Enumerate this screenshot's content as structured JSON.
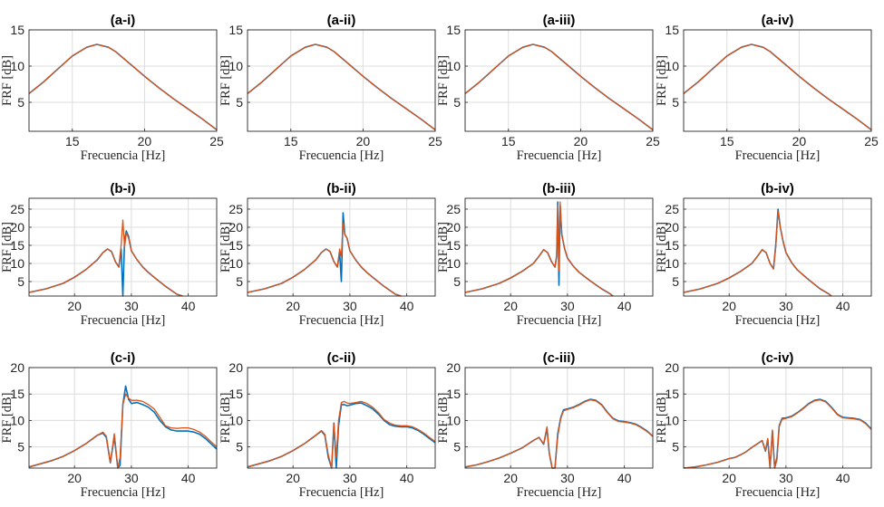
{
  "colors": {
    "series_blue": "#0072BD",
    "series_orange": "#D95319",
    "series_dark": "#404040"
  },
  "chart_data": [
    {
      "title": "(a-i)",
      "type": "line",
      "xlabel": "Frecuencia [Hz]",
      "ylabel": "FRF [dB]",
      "xlim": [
        12,
        25
      ],
      "ylim": [
        1,
        15
      ],
      "xticks": [
        15,
        20,
        25
      ],
      "yticks": [
        5,
        10,
        15
      ],
      "grid": true,
      "x": [
        12,
        13,
        14,
        15,
        16,
        16.7,
        17.5,
        18,
        19,
        20,
        21,
        22,
        23,
        24,
        25
      ],
      "series": [
        {
          "values": [
            6.2,
            7.8,
            9.6,
            11.4,
            12.6,
            13.0,
            12.6,
            12.0,
            10.3,
            8.6,
            7.0,
            5.5,
            4.1,
            2.7,
            1.2
          ]
        },
        {
          "values": [
            6.2,
            7.8,
            9.6,
            11.4,
            12.6,
            13.0,
            12.6,
            12.0,
            10.3,
            8.6,
            7.0,
            5.5,
            4.1,
            2.7,
            1.2
          ]
        }
      ]
    },
    {
      "title": "(a-ii)",
      "type": "line",
      "xlabel": "Frecuencia [Hz]",
      "ylabel": "FRF [dB]",
      "xlim": [
        12,
        25
      ],
      "ylim": [
        1,
        15
      ],
      "xticks": [
        15,
        20,
        25
      ],
      "yticks": [
        5,
        10,
        15
      ],
      "grid": true,
      "x": [
        12,
        13,
        14,
        15,
        16,
        16.7,
        17.5,
        18,
        19,
        20,
        21,
        22,
        23,
        24,
        25
      ],
      "series": [
        {
          "values": [
            6.2,
            7.8,
            9.6,
            11.4,
            12.6,
            13.0,
            12.6,
            12.0,
            10.3,
            8.6,
            7.0,
            5.5,
            4.1,
            2.7,
            1.2
          ]
        },
        {
          "values": [
            6.2,
            7.8,
            9.6,
            11.4,
            12.6,
            13.0,
            12.6,
            12.0,
            10.3,
            8.6,
            7.0,
            5.5,
            4.1,
            2.7,
            1.2
          ]
        }
      ]
    },
    {
      "title": "(a-iii)",
      "type": "line",
      "xlabel": "Frecuencia [Hz]",
      "ylabel": "FRF [dB]",
      "xlim": [
        12,
        25
      ],
      "ylim": [
        1,
        15
      ],
      "xticks": [
        15,
        20,
        25
      ],
      "yticks": [
        5,
        10,
        15
      ],
      "grid": true,
      "x": [
        12,
        13,
        14,
        15,
        16,
        16.7,
        17.5,
        18,
        19,
        20,
        21,
        22,
        23,
        24,
        25
      ],
      "series": [
        {
          "values": [
            6.2,
            7.8,
            9.6,
            11.4,
            12.6,
            13.0,
            12.6,
            12.0,
            10.3,
            8.6,
            7.0,
            5.5,
            4.1,
            2.7,
            1.2
          ]
        },
        {
          "values": [
            6.2,
            7.8,
            9.6,
            11.4,
            12.6,
            13.0,
            12.6,
            12.0,
            10.3,
            8.6,
            7.0,
            5.5,
            4.1,
            2.7,
            1.2
          ]
        }
      ]
    },
    {
      "title": "(a-iv)",
      "type": "line",
      "xlabel": "Frecuencia [Hz]",
      "ylabel": "FRF [dB]",
      "xlim": [
        12,
        25
      ],
      "ylim": [
        1,
        15
      ],
      "xticks": [
        15,
        20,
        25
      ],
      "yticks": [
        5,
        10,
        15
      ],
      "grid": true,
      "x": [
        12,
        13,
        14,
        15,
        16,
        16.7,
        17.5,
        18,
        19,
        20,
        21,
        22,
        23,
        24,
        25
      ],
      "series": [
        {
          "values": [
            6.2,
            7.8,
            9.6,
            11.4,
            12.6,
            13.0,
            12.6,
            12.0,
            10.3,
            8.6,
            7.0,
            5.5,
            4.1,
            2.7,
            1.2
          ]
        },
        {
          "values": [
            6.2,
            7.8,
            9.6,
            11.4,
            12.6,
            13.0,
            12.6,
            12.0,
            10.3,
            8.6,
            7.0,
            5.5,
            4.1,
            2.7,
            1.2
          ]
        }
      ]
    },
    {
      "title": "(b-i)",
      "type": "line",
      "xlabel": "Frecuencia [Hz]",
      "ylabel": "FRF [dB]",
      "xlim": [
        12,
        45
      ],
      "ylim": [
        1,
        28
      ],
      "xticks": [
        20,
        30,
        40
      ],
      "yticks": [
        5,
        10,
        15,
        20,
        25
      ],
      "grid": true,
      "x": [
        12,
        15,
        18,
        20,
        22,
        24,
        25,
        25.8,
        26.5,
        27.2,
        27.8,
        28.2,
        28.5,
        28.8,
        29.1,
        29.5,
        30,
        31,
        32,
        33,
        34,
        36,
        38,
        39
      ],
      "series": [
        {
          "values": [
            2.0,
            3.0,
            4.5,
            6.2,
            8.3,
            11.0,
            13.0,
            14.0,
            13.3,
            10.5,
            9.0,
            14.0,
            1.0,
            16.5,
            19.0,
            17.5,
            13.5,
            11.0,
            9.0,
            7.5,
            6.2,
            3.7,
            1.5,
            1.0
          ]
        },
        {
          "values": [
            2.0,
            3.0,
            4.5,
            6.2,
            8.3,
            11.0,
            13.0,
            14.0,
            13.3,
            10.5,
            9.0,
            15.0,
            22.0,
            14.5,
            18.5,
            17.0,
            13.5,
            11.0,
            9.0,
            7.5,
            6.2,
            3.7,
            1.5,
            1.0
          ]
        }
      ]
    },
    {
      "title": "(b-ii)",
      "type": "line",
      "xlabel": "Frecuencia [Hz]",
      "ylabel": "FRF [dB]",
      "xlim": [
        12,
        45
      ],
      "ylim": [
        1,
        28
      ],
      "xticks": [
        20,
        30,
        40
      ],
      "yticks": [
        5,
        10,
        15,
        20,
        25
      ],
      "grid": true,
      "x": [
        12,
        15,
        18,
        20,
        22,
        24,
        25,
        25.8,
        26.5,
        27.2,
        27.8,
        28.2,
        28.5,
        28.8,
        29.1,
        29.5,
        30,
        31,
        32,
        33,
        34,
        36,
        38,
        39
      ],
      "series": [
        {
          "values": [
            2.0,
            3.0,
            4.5,
            6.2,
            8.3,
            11.0,
            13.0,
            14.0,
            13.3,
            10.5,
            9.0,
            13.0,
            5.0,
            24.0,
            18.0,
            17.0,
            13.5,
            11.0,
            9.0,
            7.5,
            6.2,
            3.7,
            1.5,
            1.0
          ]
        },
        {
          "values": [
            2.0,
            3.0,
            4.5,
            6.2,
            8.3,
            11.0,
            13.0,
            14.0,
            13.3,
            10.5,
            9.0,
            14.0,
            12.0,
            21.0,
            18.0,
            17.0,
            13.5,
            11.0,
            9.0,
            7.5,
            6.2,
            3.7,
            1.5,
            1.0
          ]
        }
      ]
    },
    {
      "title": "(b-iii)",
      "type": "line",
      "xlabel": "Frecuencia [Hz]",
      "ylabel": "FRF [dB]",
      "xlim": [
        12,
        45
      ],
      "ylim": [
        1,
        28
      ],
      "xticks": [
        20,
        30,
        40
      ],
      "yticks": [
        5,
        10,
        15,
        20,
        25
      ],
      "grid": true,
      "x": [
        12,
        15,
        18,
        20,
        22,
        24,
        25,
        25.8,
        26.5,
        27.2,
        27.8,
        28.1,
        28.3,
        28.5,
        28.7,
        29.0,
        29.5,
        30,
        31,
        32,
        34,
        36,
        37.5,
        38
      ],
      "series": [
        {
          "values": [
            2.0,
            3.0,
            4.5,
            6.0,
            7.8,
            10.0,
            12.0,
            13.8,
            13.0,
            10.5,
            9.0,
            12.0,
            27.0,
            4.0,
            26.0,
            18.0,
            14.0,
            11.5,
            9.3,
            7.6,
            5.2,
            3.0,
            1.6,
            1.0
          ]
        },
        {
          "values": [
            2.0,
            3.0,
            4.5,
            6.0,
            7.8,
            10.0,
            12.0,
            13.8,
            13.0,
            10.5,
            9.0,
            12.5,
            26.0,
            8.0,
            27.0,
            18.0,
            14.0,
            11.5,
            9.3,
            7.6,
            5.2,
            3.0,
            1.6,
            1.0
          ]
        }
      ]
    },
    {
      "title": "(b-iv)",
      "type": "line",
      "xlabel": "Frecuencia [Hz]",
      "ylabel": "FRF [dB]",
      "xlim": [
        12,
        45
      ],
      "ylim": [
        1,
        28
      ],
      "xticks": [
        20,
        30,
        40
      ],
      "yticks": [
        5,
        10,
        15,
        20,
        25
      ],
      "grid": true,
      "x": [
        12,
        15,
        18,
        20,
        22,
        24,
        25,
        25.8,
        26.5,
        27.2,
        27.8,
        28.2,
        28.6,
        29.0,
        29.5,
        30,
        31,
        32,
        34,
        36,
        37.5,
        38
      ],
      "series": [
        {
          "values": [
            2.0,
            3.0,
            4.5,
            6.0,
            7.8,
            10.0,
            12.0,
            13.8,
            13.0,
            10.0,
            8.5,
            15.0,
            25.0,
            20.0,
            16.0,
            13.0,
            10.2,
            8.2,
            5.5,
            3.0,
            1.6,
            1.0
          ]
        },
        {
          "values": [
            2.0,
            3.0,
            4.5,
            6.0,
            7.8,
            10.0,
            12.0,
            13.8,
            13.0,
            10.0,
            8.5,
            14.5,
            24.5,
            20.0,
            16.0,
            13.0,
            10.2,
            8.2,
            5.5,
            3.0,
            1.6,
            1.0
          ]
        }
      ]
    },
    {
      "title": "(c-i)",
      "type": "line",
      "xlabel": "Frecuencia [Hz]",
      "ylabel": "FRF [dB]",
      "xlim": [
        12,
        45
      ],
      "ylim": [
        1,
        20
      ],
      "xticks": [
        20,
        30,
        40
      ],
      "yticks": [
        5,
        10,
        15,
        20
      ],
      "grid": true,
      "x": [
        12,
        14,
        16,
        18,
        20,
        22,
        24,
        25,
        25.6,
        26.3,
        27,
        27.6,
        28.0,
        28.5,
        29,
        29.5,
        30,
        31,
        32,
        33,
        34,
        35,
        36,
        37,
        38,
        39,
        40,
        41,
        42,
        43,
        44,
        45
      ],
      "series": [
        {
          "values": [
            1.2,
            1.8,
            2.4,
            3.2,
            4.3,
            5.6,
            7.2,
            7.6,
            6.8,
            2.0,
            7.0,
            1.0,
            1.5,
            13.0,
            16.5,
            14.0,
            13.2,
            13.4,
            13.0,
            12.5,
            11.6,
            10.0,
            8.8,
            8.2,
            8.0,
            8.0,
            8.0,
            7.8,
            7.4,
            6.6,
            5.6,
            4.6
          ]
        },
        {
          "values": [
            1.2,
            1.8,
            2.4,
            3.2,
            4.3,
            5.6,
            7.2,
            7.8,
            7.0,
            2.0,
            7.5,
            1.0,
            3.0,
            13.0,
            15.0,
            14.2,
            13.8,
            13.8,
            13.6,
            13.0,
            12.2,
            10.6,
            9.0,
            8.6,
            8.5,
            8.6,
            8.6,
            8.3,
            7.8,
            7.0,
            6.0,
            5.0
          ]
        }
      ]
    },
    {
      "title": "(c-ii)",
      "type": "line",
      "xlabel": "Frecuencia [Hz]",
      "ylabel": "FRF [dB]",
      "xlim": [
        12,
        45
      ],
      "ylim": [
        1,
        20
      ],
      "xticks": [
        20,
        30,
        40
      ],
      "yticks": [
        5,
        10,
        15,
        20
      ],
      "grid": true,
      "x": [
        12,
        14,
        16,
        18,
        20,
        22,
        24,
        25,
        25.6,
        26.2,
        26.8,
        27.2,
        27.6,
        28.0,
        28.5,
        29,
        29.5,
        30,
        31,
        32,
        33,
        34,
        35,
        36,
        37,
        38,
        39,
        40,
        41,
        42,
        43,
        44,
        45
      ],
      "series": [
        {
          "values": [
            1.2,
            1.8,
            2.4,
            3.2,
            4.3,
            5.6,
            7.2,
            8.0,
            7.2,
            3.0,
            1.0,
            9.5,
            1.0,
            9.0,
            13.0,
            13.0,
            12.8,
            12.9,
            13.2,
            13.3,
            12.8,
            12.2,
            11.2,
            10.0,
            9.2,
            8.9,
            8.8,
            8.8,
            8.6,
            8.1,
            7.4,
            6.6,
            5.8
          ]
        },
        {
          "values": [
            1.2,
            1.8,
            2.4,
            3.2,
            4.3,
            5.6,
            7.2,
            8.1,
            7.4,
            3.5,
            1.0,
            9.3,
            3.0,
            10.0,
            13.4,
            13.6,
            13.3,
            13.2,
            13.4,
            13.6,
            13.2,
            12.5,
            11.5,
            10.2,
            9.5,
            9.1,
            9.0,
            9.0,
            8.8,
            8.3,
            7.6,
            6.8,
            6.0
          ]
        }
      ]
    },
    {
      "title": "(c-iii)",
      "type": "line",
      "xlabel": "Frecuencia [Hz]",
      "ylabel": "FRF [dB]",
      "xlim": [
        12,
        45
      ],
      "ylim": [
        1,
        20
      ],
      "xticks": [
        20,
        30,
        40
      ],
      "yticks": [
        5,
        10,
        15,
        20
      ],
      "grid": true,
      "x": [
        12,
        14,
        16,
        18,
        20,
        22,
        24,
        25,
        25.8,
        26.4,
        26.8,
        27.3,
        27.8,
        28.3,
        28.8,
        29.3,
        30,
        31,
        32,
        33,
        34,
        35,
        36,
        37,
        38,
        39,
        40,
        41,
        42,
        43,
        44,
        45
      ],
      "series": [
        {
          "values": [
            1.2,
            1.6,
            2.2,
            2.9,
            3.8,
            4.8,
            6.2,
            6.8,
            5.5,
            8.5,
            3.8,
            1.0,
            1.0,
            7.5,
            10.5,
            12.0,
            12.2,
            12.5,
            13.0,
            13.6,
            14.0,
            13.8,
            13.0,
            11.6,
            10.4,
            9.9,
            9.8,
            9.6,
            9.3,
            8.7,
            8.0,
            7.0
          ]
        },
        {
          "values": [
            1.2,
            1.6,
            2.2,
            2.9,
            3.8,
            4.8,
            6.2,
            6.8,
            5.6,
            8.8,
            4.0,
            1.0,
            1.0,
            7.0,
            10.3,
            11.8,
            12.1,
            12.4,
            12.9,
            13.5,
            13.9,
            13.7,
            12.9,
            11.5,
            10.3,
            9.8,
            9.7,
            9.5,
            9.2,
            8.6,
            7.9,
            7.0
          ]
        }
      ]
    },
    {
      "title": "(c-iv)",
      "type": "line",
      "xlabel": "Frecuencia [Hz]",
      "ylabel": "FRF [dB]",
      "xlim": [
        12,
        45
      ],
      "ylim": [
        1,
        20
      ],
      "xticks": [
        20,
        30,
        40
      ],
      "yticks": [
        5,
        10,
        15,
        20
      ],
      "grid": true,
      "x": [
        12,
        14,
        16,
        18,
        20,
        21,
        22,
        23,
        24,
        25,
        25.8,
        26.4,
        26.8,
        27.2,
        27.6,
        28.0,
        28.4,
        28.8,
        29.3,
        30,
        31,
        32,
        33,
        34,
        35,
        36,
        37,
        38,
        39,
        40,
        41,
        42,
        43,
        44,
        45
      ],
      "series": [
        {
          "values": [
            1.0,
            1.2,
            1.6,
            2.1,
            2.8,
            3.0,
            3.5,
            4.1,
            4.9,
            5.6,
            6.2,
            4.2,
            6.5,
            1.0,
            8.0,
            1.0,
            3.0,
            9.0,
            10.4,
            10.5,
            10.8,
            11.5,
            12.3,
            13.2,
            13.8,
            14.0,
            13.6,
            12.5,
            11.2,
            10.6,
            10.5,
            10.4,
            10.2,
            9.5,
            8.4
          ]
        },
        {
          "values": [
            1.0,
            1.2,
            1.6,
            2.1,
            2.8,
            3.0,
            3.5,
            4.1,
            4.9,
            5.6,
            6.2,
            4.3,
            6.6,
            1.0,
            8.2,
            1.0,
            2.5,
            8.8,
            10.2,
            10.4,
            10.7,
            11.4,
            12.2,
            13.1,
            13.7,
            13.9,
            13.5,
            12.4,
            11.1,
            10.5,
            10.4,
            10.3,
            10.1,
            9.4,
            8.3
          ]
        }
      ]
    }
  ]
}
